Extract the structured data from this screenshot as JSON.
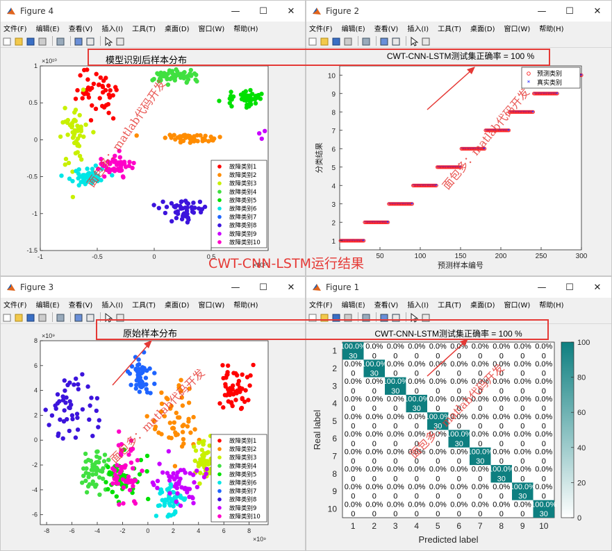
{
  "menus": [
    "文件(F)",
    "编辑(E)",
    "查看(V)",
    "插入(I)",
    "工具(T)",
    "桌面(D)",
    "窗口(W)",
    "帮助(H)"
  ],
  "window_controls": [
    "—",
    "☐",
    "✕"
  ],
  "windows": {
    "fig4": {
      "title": "Figure 4"
    },
    "fig2": {
      "title": "Figure 2"
    },
    "fig3": {
      "title": "Figure 3"
    },
    "fig1": {
      "title": "Figure 1"
    }
  },
  "annotations": {
    "box_top_label": "模型识别后样本分布",
    "box_top_right_label": "CWT-CNN-LSTM测试集正确率 = 100 %",
    "box_bottom_label": "原始样本分布",
    "box_bottom_right_label": "CWT-CNN-LSTM测试集正确率 = 100 %",
    "center_caption": "CWT-CNN-LSTM运行结果",
    "watermark": "面包多：matlab代码开发"
  },
  "colors": {
    "classes": [
      "#ff0000",
      "#ff8c00",
      "#c8f000",
      "#40e040",
      "#00e000",
      "#00e6e6",
      "#1e64ff",
      "#3c14dc",
      "#c800ff",
      "#ff00c8"
    ],
    "heat_high": "#0e7f80",
    "annotation_red": "#e53935"
  },
  "chart_data": [
    {
      "id": "fig4",
      "type": "scatter",
      "title": "",
      "xlim": [
        -1,
        1
      ],
      "ylim": [
        -1.5,
        1
      ],
      "x_exponent": "×10¹⁰",
      "y_exponent": "×10¹⁰",
      "xticks": [
        "-1",
        "-0.5",
        "0",
        "0.5",
        ""
      ],
      "yticks": [
        "1",
        "0.5",
        "0",
        "-0.5",
        "-1",
        "-1.5"
      ],
      "legend_entries": [
        "故障类别1",
        "故障类别2",
        "故障类别3",
        "故障类别4",
        "故障类别5",
        "故障类别6",
        "故障类别7",
        "故障类别8",
        "故障类别9",
        "故障类别10"
      ],
      "legend_position": "bottom-right",
      "clusters": [
        {
          "class": 1,
          "cx": -0.5,
          "cy": 0.65,
          "sx": 0.09,
          "sy": 0.18
        },
        {
          "class": 2,
          "cx": 0.35,
          "cy": 0.02,
          "sx": 0.12,
          "sy": 0.03
        },
        {
          "class": 3,
          "cx": -0.7,
          "cy": 0.1,
          "sx": 0.05,
          "sy": 0.2
        },
        {
          "class": 4,
          "cx": 0.18,
          "cy": 0.85,
          "sx": 0.12,
          "sy": 0.05
        },
        {
          "class": 5,
          "cx": 0.8,
          "cy": 0.55,
          "sx": 0.08,
          "sy": 0.05
        },
        {
          "class": 6,
          "cx": -0.6,
          "cy": -0.5,
          "sx": 0.08,
          "sy": 0.06
        },
        {
          "class": 7,
          "cx": 0.65,
          "cy": -0.4,
          "sx": 0.06,
          "sy": 0.04
        },
        {
          "class": 8,
          "cx": 0.25,
          "cy": -0.95,
          "sx": 0.1,
          "sy": 0.07
        },
        {
          "class": 9,
          "cx": 1.15,
          "cy": 0.1,
          "sx": 0.07,
          "sy": 0.08
        },
        {
          "class": 10,
          "cx": -0.35,
          "cy": -0.35,
          "sx": 0.07,
          "sy": 0.08
        }
      ]
    },
    {
      "id": "fig2",
      "type": "scatter",
      "title": "CWT-CNN-LSTM测试集正确率 = 100 %",
      "xlabel": "预测样本编号",
      "ylabel": "分类结果",
      "xlim": [
        0,
        300
      ],
      "ylim": [
        0.5,
        10.5
      ],
      "xticks": [
        "",
        "50",
        "100",
        "150",
        "200",
        "250",
        "300"
      ],
      "yticks": [
        "1",
        "2",
        "3",
        "4",
        "5",
        "6",
        "7",
        "8",
        "9",
        "10"
      ],
      "legend_entries": [
        "预测类别",
        "真实类别"
      ],
      "legend_position": "top-right",
      "samples_per_class": 30
    },
    {
      "id": "fig3",
      "type": "scatter",
      "title": "",
      "xlim": [
        -8.5,
        9.5
      ],
      "ylim": [
        -6.8,
        8
      ],
      "x_exponent": "×10⁹",
      "y_exponent": "×10⁹",
      "xticks": [
        "-8",
        "-6",
        "-4",
        "-2",
        "0",
        "2",
        "4",
        "6",
        "8"
      ],
      "yticks": [
        "8",
        "6",
        "4",
        "2",
        "0",
        "-2",
        "-4",
        "-6"
      ],
      "legend_entries": [
        "故障类别1",
        "故障类别2",
        "故障类别3",
        "故障类别4",
        "故障类别5",
        "故障类别6",
        "故障类别7",
        "故障类别8",
        "故障类别9",
        "故障类别10"
      ],
      "legend_position": "bottom-right",
      "clusters": [
        {
          "class": 1,
          "cx": 6.8,
          "cy": 4.2,
          "sx": 0.6,
          "sy": 0.9
        },
        {
          "class": 2,
          "cx": 2.0,
          "cy": 1.5,
          "sx": 0.9,
          "sy": 1.4
        },
        {
          "class": 3,
          "cx": 4.5,
          "cy": -1.5,
          "sx": 0.3,
          "sy": 1.0
        },
        {
          "class": 4,
          "cx": -4.2,
          "cy": -2.2,
          "sx": 0.6,
          "sy": 0.8
        },
        {
          "class": 5,
          "cx": -2.0,
          "cy": -3.0,
          "sx": 0.8,
          "sy": 0.9
        },
        {
          "class": 6,
          "cx": 1.8,
          "cy": -4.8,
          "sx": 0.5,
          "sy": 0.7
        },
        {
          "class": 7,
          "cx": -0.6,
          "cy": 5.0,
          "sx": 0.4,
          "sy": 0.8
        },
        {
          "class": 8,
          "cx": -6.0,
          "cy": 2.5,
          "sx": 1.2,
          "sy": 1.3
        },
        {
          "class": 9,
          "cx": 2.5,
          "cy": -3.5,
          "sx": 0.9,
          "sy": 0.8
        },
        {
          "class": 10,
          "cx": -1.7,
          "cy": -2.5,
          "sx": 0.5,
          "sy": 1.2
        }
      ]
    },
    {
      "id": "fig1",
      "type": "heatmap",
      "title": "CWT-CNN-LSTM测试集正确率 = 100 %",
      "xlabel": "Predicted label",
      "ylabel": "Real label",
      "labels": [
        "1",
        "2",
        "3",
        "4",
        "5",
        "6",
        "7",
        "8",
        "9",
        "10"
      ],
      "diagonal_count": 30,
      "diagonal_percent": "100.0%",
      "offdiag_percent": "0.0%",
      "offdiag_count": "0",
      "colorbar_ticks": [
        "100",
        "80",
        "60",
        "40",
        "20",
        "0"
      ],
      "colorbar_range": [
        0,
        100
      ]
    }
  ]
}
